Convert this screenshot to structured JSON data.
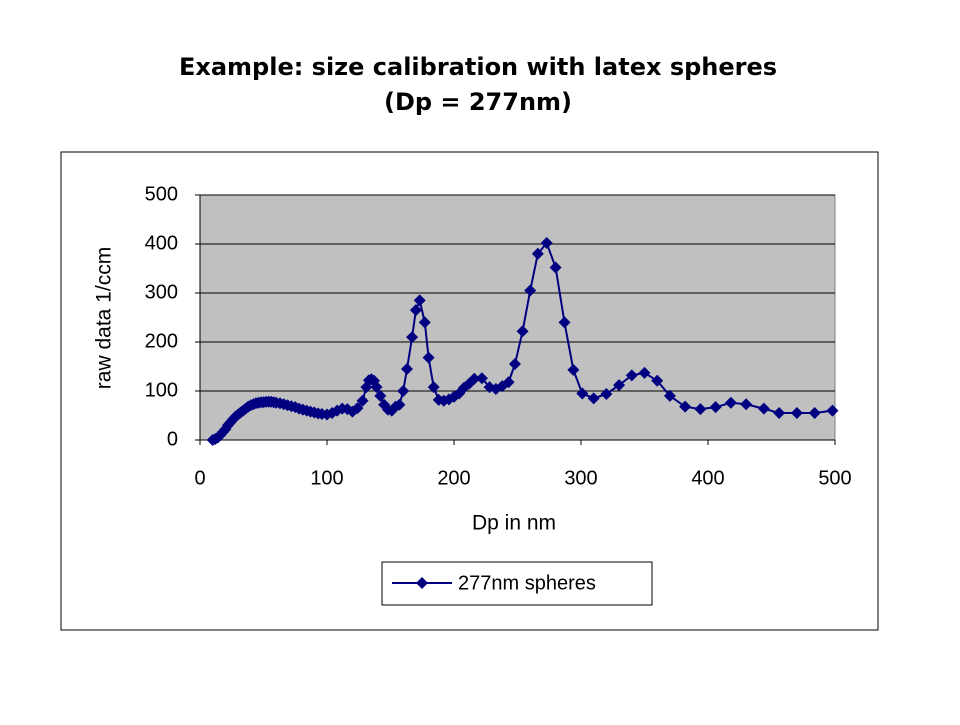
{
  "chart_data": {
    "type": "line",
    "title": "Example: size calibration with latex spheres",
    "subtitle": "(Dp = 277nm)",
    "x_label": "Dp in nm",
    "y_label": "raw data 1/ccm",
    "x": [
      10,
      12,
      14,
      16,
      18,
      20,
      22,
      24,
      26,
      28,
      30,
      32,
      34,
      36,
      38,
      40,
      42,
      44,
      46,
      48,
      50,
      52,
      54,
      56,
      58,
      60,
      63,
      66,
      69,
      72,
      75,
      78,
      81,
      84,
      87,
      90,
      93,
      96,
      100,
      104,
      108,
      112,
      116,
      120,
      124,
      128,
      131,
      133,
      135,
      137,
      139,
      142,
      145,
      148,
      151,
      154,
      157,
      160,
      163,
      167,
      170,
      173,
      177,
      180,
      184,
      188,
      192,
      196,
      200,
      204,
      208,
      212,
      216,
      222,
      228,
      233,
      238,
      243,
      248,
      254,
      260,
      266,
      273,
      280,
      287,
      294,
      301,
      310,
      320,
      330,
      340,
      350,
      360,
      370,
      382,
      394,
      406,
      418,
      430,
      444,
      456,
      470,
      484,
      498
    ],
    "series": [
      {
        "name": "277nm spheres",
        "color": "#000080",
        "values": [
          0,
          2,
          5,
          10,
          16,
          22,
          30,
          36,
          42,
          48,
          52,
          56,
          60,
          64,
          68,
          71,
          73,
          75,
          76,
          77,
          77,
          78,
          78,
          78,
          77,
          76,
          75,
          73,
          71,
          69,
          67,
          64,
          62,
          60,
          58,
          56,
          54,
          53,
          52,
          55,
          60,
          64,
          63,
          58,
          65,
          80,
          108,
          122,
          124,
          121,
          108,
          90,
          72,
          62,
          60,
          68,
          72,
          100,
          145,
          210,
          265,
          285,
          240,
          168,
          108,
          82,
          80,
          83,
          88,
          95,
          107,
          115,
          125,
          126,
          108,
          104,
          110,
          118,
          155,
          222,
          305,
          380,
          402,
          352,
          240,
          143,
          95,
          85,
          94,
          112,
          132,
          137,
          121,
          90,
          68,
          63,
          67,
          76,
          73,
          64,
          55,
          55,
          55,
          60
        ]
      }
    ],
    "xlim": [
      0,
      500
    ],
    "xticks": [
      0,
      100,
      200,
      300,
      400,
      500
    ],
    "ylim": [
      0,
      500
    ],
    "yticks": [
      0,
      100,
      200,
      300,
      400,
      500
    ],
    "grid": true,
    "plot_background": "#c0c0c0",
    "legend": "bottom"
  }
}
